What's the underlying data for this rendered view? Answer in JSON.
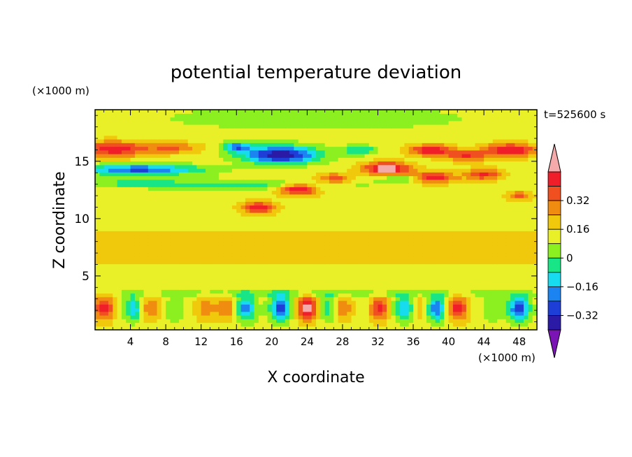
{
  "chart_data": {
    "type": "heatmap",
    "title": "potential temperature deviation",
    "xlabel": "X coordinate",
    "ylabel": "Z coordinate",
    "x_unit": "(×1000 m)",
    "y_unit": "(×1000 m)",
    "time_label": "t=525600 s",
    "xlim": [
      0,
      50
    ],
    "ylim": [
      0.3,
      19.5
    ],
    "x_ticks": [
      "4",
      "8",
      "12",
      "16",
      "20",
      "24",
      "28",
      "32",
      "36",
      "40",
      "44",
      "48"
    ],
    "y_ticks": [
      "5",
      "10",
      "15"
    ],
    "colorbar": {
      "levels": [
        -0.48,
        -0.4,
        -0.32,
        -0.24,
        -0.16,
        -0.08,
        0,
        0.08,
        0.16,
        0.24,
        0.32,
        0.4,
        0.48
      ],
      "tick_labels": [
        "0.32",
        "0.16",
        "0",
        "−0.16",
        "−0.32"
      ],
      "colors": [
        "#7b14b4",
        "#2a1aa6",
        "#1e3fd7",
        "#1b84f0",
        "#17dcf0",
        "#18e686",
        "#8cf020",
        "#eaf028",
        "#f0c80c",
        "#f08c10",
        "#f05020",
        "#f01e28",
        "#f4aaaa"
      ],
      "extend": "both"
    },
    "layers": [
      {
        "z_range": [
          0.3,
          3.6
        ],
        "description": "boundary layer with strong alternating positive and negative deviations"
      },
      {
        "z_range": [
          3.6,
          10.5
        ],
        "description": "mostly near-zero to weakly positive values"
      },
      {
        "z_range": [
          10.5,
          17.5
        ],
        "description": "upper layer with strong positive and negative bands"
      },
      {
        "z_range": [
          17.5,
          19.5
        ],
        "description": "near-zero values"
      }
    ]
  }
}
